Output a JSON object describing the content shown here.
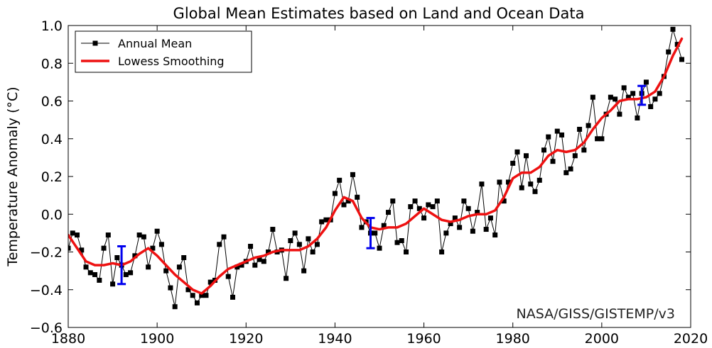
{
  "chart_data": {
    "type": "line",
    "title": "Global Mean Estimates based on Land and Ocean Data",
    "ylabel": "Temperature Anomaly (°C)",
    "xlabel": "",
    "xlim": [
      1880,
      2020
    ],
    "ylim": [
      -0.6,
      1.0
    ],
    "x_ticks": [
      1880,
      1900,
      1920,
      1940,
      1960,
      1980,
      2000,
      2020
    ],
    "x_tick_labels": [
      "1880",
      "1900",
      "1920",
      "1940",
      "1960",
      "1980",
      "2000",
      "2020"
    ],
    "y_ticks": [
      -0.6,
      -0.4,
      -0.2,
      0.0,
      0.2,
      0.4,
      0.6,
      0.8,
      1.0
    ],
    "y_tick_labels": [
      "−0.6",
      "−0.4",
      "−0.2",
      "0.0",
      "0.2",
      "0.4",
      "0.6",
      "0.8",
      "1.0"
    ],
    "grid": false,
    "legend_position": "top-left",
    "annotation": "NASA/GISS/GISTEMP/v3",
    "colors": {
      "annual": "#000000",
      "lowess": "#ee1111",
      "error_bars": "#0000ee"
    },
    "series": [
      {
        "name": "Annual Mean",
        "style": "line-with-square-markers",
        "x": [
          1880,
          1881,
          1882,
          1883,
          1884,
          1885,
          1886,
          1887,
          1888,
          1889,
          1890,
          1891,
          1892,
          1893,
          1894,
          1895,
          1896,
          1897,
          1898,
          1899,
          1900,
          1901,
          1902,
          1903,
          1904,
          1905,
          1906,
          1907,
          1908,
          1909,
          1910,
          1911,
          1912,
          1913,
          1914,
          1915,
          1916,
          1917,
          1918,
          1919,
          1920,
          1921,
          1922,
          1923,
          1924,
          1925,
          1926,
          1927,
          1928,
          1929,
          1930,
          1931,
          1932,
          1933,
          1934,
          1935,
          1936,
          1937,
          1938,
          1939,
          1940,
          1941,
          1942,
          1943,
          1944,
          1945,
          1946,
          1947,
          1948,
          1949,
          1950,
          1951,
          1952,
          1953,
          1954,
          1955,
          1956,
          1957,
          1958,
          1959,
          1960,
          1961,
          1962,
          1963,
          1964,
          1965,
          1966,
          1967,
          1968,
          1969,
          1970,
          1971,
          1972,
          1973,
          1974,
          1975,
          1976,
          1977,
          1978,
          1979,
          1980,
          1981,
          1982,
          1983,
          1984,
          1985,
          1986,
          1987,
          1988,
          1989,
          1990,
          1991,
          1992,
          1993,
          1994,
          1995,
          1996,
          1997,
          1998,
          1999,
          2000,
          2001,
          2002,
          2003,
          2004,
          2005,
          2006,
          2007,
          2008,
          2009,
          2010,
          2011,
          2012,
          2013,
          2014,
          2015,
          2016,
          2017,
          2018
        ],
        "y": [
          -0.18,
          -0.1,
          -0.11,
          -0.19,
          -0.28,
          -0.31,
          -0.32,
          -0.35,
          -0.18,
          -0.11,
          -0.37,
          -0.23,
          -0.27,
          -0.32,
          -0.31,
          -0.22,
          -0.11,
          -0.12,
          -0.28,
          -0.18,
          -0.09,
          -0.16,
          -0.3,
          -0.39,
          -0.49,
          -0.28,
          -0.23,
          -0.4,
          -0.43,
          -0.47,
          -0.43,
          -0.43,
          -0.36,
          -0.35,
          -0.16,
          -0.12,
          -0.33,
          -0.44,
          -0.28,
          -0.27,
          -0.25,
          -0.17,
          -0.27,
          -0.24,
          -0.25,
          -0.2,
          -0.08,
          -0.2,
          -0.19,
          -0.34,
          -0.14,
          -0.1,
          -0.16,
          -0.3,
          -0.13,
          -0.2,
          -0.16,
          -0.04,
          -0.03,
          -0.03,
          0.11,
          0.18,
          0.05,
          0.07,
          0.21,
          0.09,
          -0.07,
          -0.04,
          -0.1,
          -0.1,
          -0.18,
          -0.06,
          0.01,
          0.07,
          -0.15,
          -0.14,
          -0.2,
          0.04,
          0.07,
          0.03,
          -0.02,
          0.05,
          0.04,
          0.07,
          -0.2,
          -0.1,
          -0.05,
          -0.02,
          -0.07,
          0.07,
          0.03,
          -0.09,
          0.01,
          0.16,
          -0.08,
          -0.02,
          -0.11,
          0.17,
          0.07,
          0.17,
          0.27,
          0.33,
          0.14,
          0.31,
          0.16,
          0.12,
          0.18,
          0.34,
          0.41,
          0.28,
          0.44,
          0.42,
          0.22,
          0.24,
          0.31,
          0.45,
          0.34,
          0.47,
          0.62,
          0.4,
          0.4,
          0.53,
          0.62,
          0.61,
          0.53,
          0.67,
          0.62,
          0.64,
          0.51,
          0.64,
          0.7,
          0.57,
          0.61,
          0.64,
          0.73,
          0.86,
          0.98,
          0.9,
          0.82
        ]
      },
      {
        "name": "Lowess Smoothing",
        "style": "thick-line",
        "x": [
          1880,
          1882,
          1884,
          1886,
          1888,
          1890,
          1892,
          1894,
          1896,
          1898,
          1900,
          1902,
          1904,
          1906,
          1908,
          1910,
          1912,
          1914,
          1916,
          1918,
          1920,
          1922,
          1924,
          1926,
          1928,
          1930,
          1932,
          1934,
          1936,
          1938,
          1940,
          1942,
          1944,
          1946,
          1948,
          1950,
          1952,
          1954,
          1956,
          1958,
          1960,
          1962,
          1964,
          1966,
          1968,
          1970,
          1972,
          1974,
          1976,
          1978,
          1980,
          1982,
          1984,
          1986,
          1988,
          1990,
          1992,
          1994,
          1996,
          1998,
          2000,
          2002,
          2004,
          2006,
          2008,
          2010,
          2012,
          2014,
          2016,
          2018
        ],
        "y": [
          -0.11,
          -0.18,
          -0.25,
          -0.27,
          -0.27,
          -0.26,
          -0.27,
          -0.25,
          -0.21,
          -0.18,
          -0.22,
          -0.27,
          -0.32,
          -0.36,
          -0.4,
          -0.42,
          -0.38,
          -0.33,
          -0.29,
          -0.27,
          -0.25,
          -0.23,
          -0.22,
          -0.2,
          -0.19,
          -0.19,
          -0.19,
          -0.17,
          -0.13,
          -0.07,
          0.02,
          0.09,
          0.07,
          -0.02,
          -0.07,
          -0.08,
          -0.07,
          -0.07,
          -0.05,
          -0.01,
          0.03,
          0.0,
          -0.03,
          -0.04,
          -0.03,
          -0.01,
          0.0,
          0.0,
          0.02,
          0.09,
          0.19,
          0.22,
          0.22,
          0.25,
          0.31,
          0.34,
          0.33,
          0.34,
          0.38,
          0.45,
          0.51,
          0.55,
          0.6,
          0.61,
          0.61,
          0.62,
          0.65,
          0.73,
          0.84,
          0.93
        ]
      }
    ],
    "error_bars": [
      {
        "x": 1892,
        "center": -0.27,
        "low": -0.37,
        "high": -0.17
      },
      {
        "x": 1948,
        "center": -0.1,
        "low": -0.18,
        "high": -0.02
      },
      {
        "x": 2009,
        "center": 0.63,
        "low": 0.58,
        "high": 0.68
      }
    ]
  }
}
